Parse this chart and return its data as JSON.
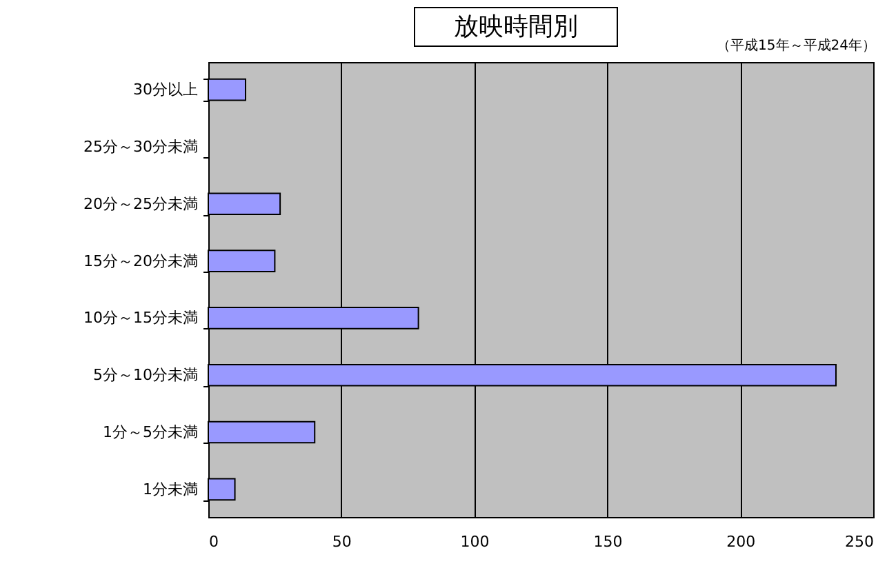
{
  "chart_data": {
    "type": "bar",
    "orientation": "horizontal",
    "title": "放映時間別",
    "annotations": [
      "（平成15年～平成24年）"
    ],
    "categories": [
      "30分以上",
      "25分～30分未満",
      "20分～25分未満",
      "15分～20分未満",
      "10分～15分未満",
      "5分～10分未満",
      "1分～5分未満",
      "1分未満"
    ],
    "values": [
      14,
      0,
      27,
      25,
      79,
      236,
      40,
      10
    ],
    "color": "#9999ff",
    "xlim": [
      0,
      250
    ],
    "xticks": [
      0,
      50,
      100,
      150,
      200,
      250
    ],
    "grid": true
  }
}
